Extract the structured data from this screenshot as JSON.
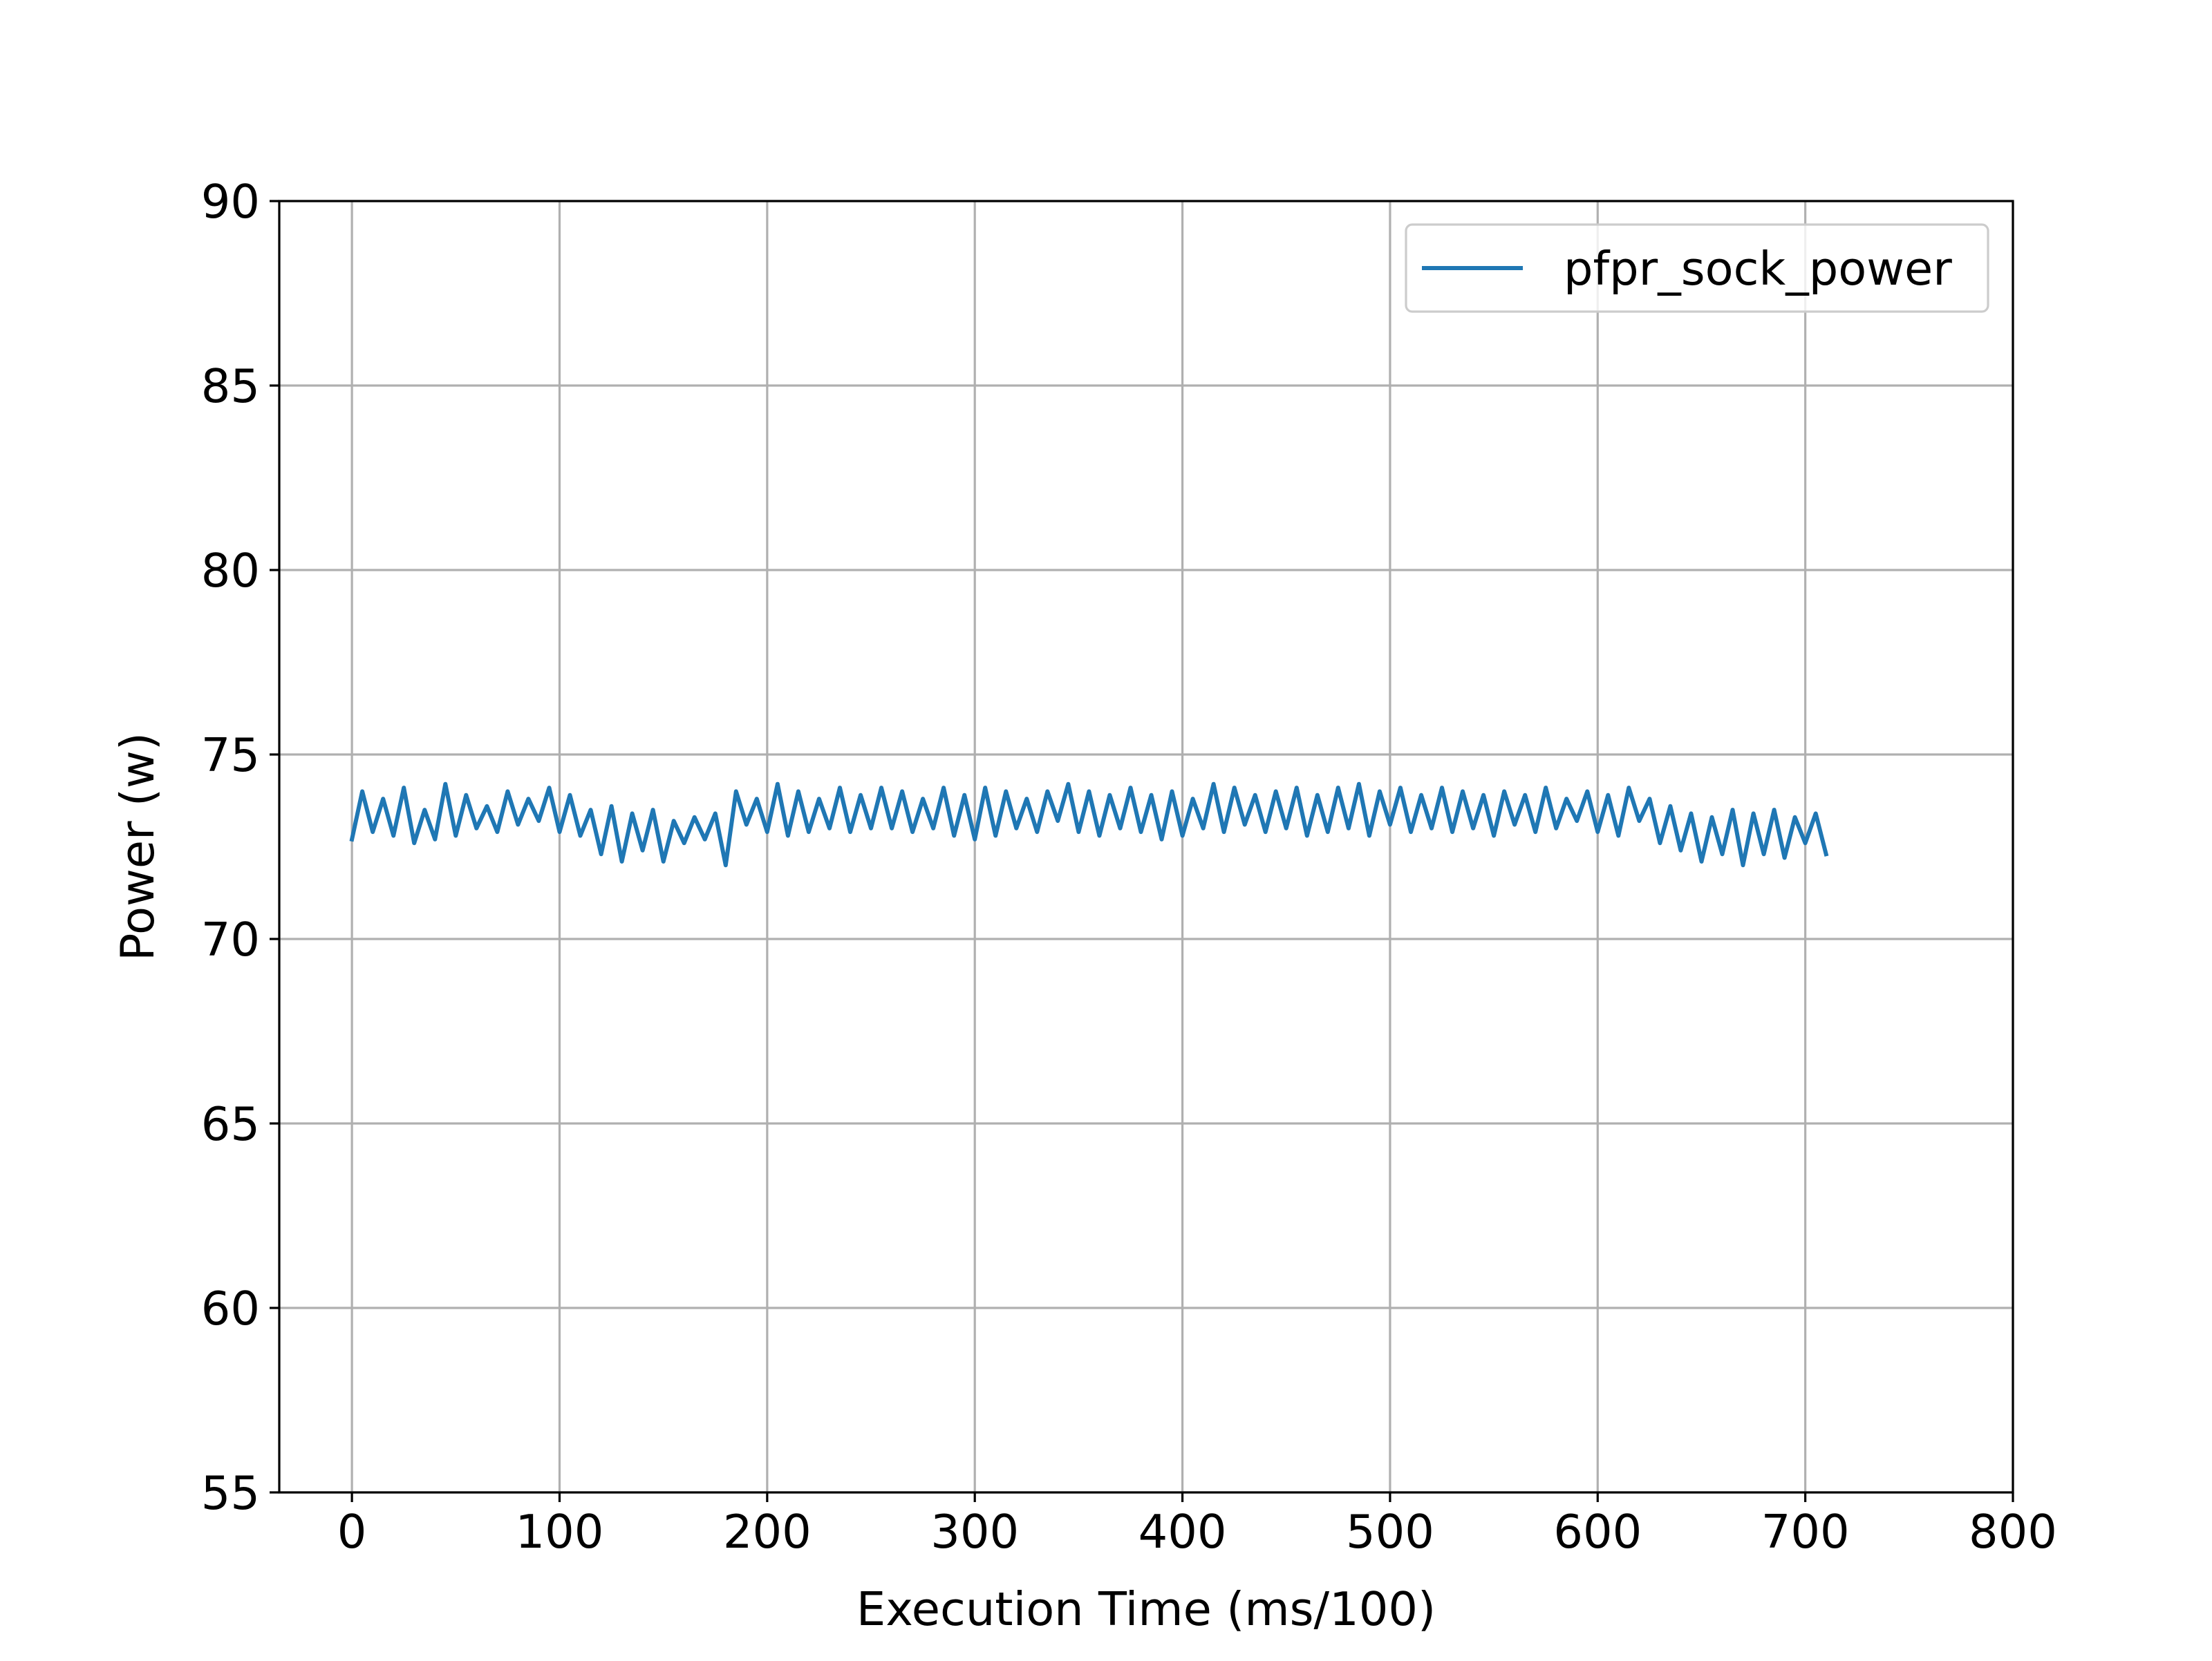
{
  "chart_data": {
    "type": "line",
    "title": "",
    "xlabel": "Execution Time (ms/100)",
    "ylabel": "Power (w)",
    "xlim": [
      -35,
      800
    ],
    "ylim": [
      55,
      90
    ],
    "xticks": [
      0,
      100,
      200,
      300,
      400,
      500,
      600,
      700,
      800
    ],
    "xtick_labels": [
      "0",
      "100",
      "200",
      "300",
      "400",
      "500",
      "600",
      "700",
      "800"
    ],
    "yticks": [
      55,
      60,
      65,
      70,
      75,
      80,
      85,
      90
    ],
    "ytick_labels": [
      "55",
      "60",
      "65",
      "70",
      "75",
      "80",
      "85",
      "90"
    ],
    "grid": true,
    "legend_position": "top-right",
    "series": [
      {
        "name": "pfpr_sock_power",
        "color": "#1f77b4",
        "x": [
          0,
          5,
          10,
          15,
          20,
          25,
          30,
          35,
          40,
          45,
          50,
          55,
          60,
          65,
          70,
          75,
          80,
          85,
          90,
          95,
          100,
          105,
          110,
          115,
          120,
          125,
          130,
          135,
          140,
          145,
          150,
          155,
          160,
          165,
          170,
          175,
          180,
          185,
          190,
          195,
          200,
          205,
          210,
          215,
          220,
          225,
          230,
          235,
          240,
          245,
          250,
          255,
          260,
          265,
          270,
          275,
          280,
          285,
          290,
          295,
          300,
          305,
          310,
          315,
          320,
          325,
          330,
          335,
          340,
          345,
          350,
          355,
          360,
          365,
          370,
          375,
          380,
          385,
          390,
          395,
          400,
          405,
          410,
          415,
          420,
          425,
          430,
          435,
          440,
          445,
          450,
          455,
          460,
          465,
          470,
          475,
          480,
          485,
          490,
          495,
          500,
          505,
          510,
          515,
          520,
          525,
          530,
          535,
          540,
          545,
          550,
          555,
          560,
          565,
          570,
          575,
          580,
          585,
          590,
          595,
          600,
          605,
          610,
          615,
          620,
          625,
          630,
          635,
          640,
          645,
          650,
          655,
          660,
          665,
          670,
          675,
          680,
          685,
          690,
          695,
          700,
          705,
          710
        ],
        "values": [
          72.7,
          74.0,
          72.9,
          73.8,
          72.8,
          74.1,
          72.6,
          73.5,
          72.7,
          74.2,
          72.8,
          73.9,
          73.0,
          73.6,
          72.9,
          74.0,
          73.1,
          73.8,
          73.2,
          74.1,
          72.9,
          73.9,
          72.8,
          73.5,
          72.3,
          73.6,
          72.1,
          73.4,
          72.4,
          73.5,
          72.1,
          73.2,
          72.6,
          73.3,
          72.7,
          73.4,
          72.0,
          74.0,
          73.1,
          73.8,
          72.9,
          74.2,
          72.8,
          74.0,
          72.9,
          73.8,
          73.0,
          74.1,
          72.9,
          73.9,
          73.0,
          74.1,
          73.0,
          74.0,
          72.9,
          73.8,
          73.0,
          74.1,
          72.8,
          73.9,
          72.7,
          74.1,
          72.8,
          74.0,
          73.0,
          73.8,
          72.9,
          74.0,
          73.2,
          74.2,
          72.9,
          74.0,
          72.8,
          73.9,
          73.0,
          74.1,
          72.9,
          73.9,
          72.7,
          74.0,
          72.8,
          73.8,
          73.0,
          74.2,
          72.9,
          74.1,
          73.1,
          73.9,
          72.9,
          74.0,
          73.0,
          74.1,
          72.8,
          73.9,
          72.9,
          74.1,
          73.0,
          74.2,
          72.8,
          74.0,
          73.1,
          74.1,
          72.9,
          73.9,
          73.0,
          74.1,
          72.9,
          74.0,
          73.0,
          73.9,
          72.8,
          74.0,
          73.1,
          73.9,
          72.9,
          74.1,
          73.0,
          73.8,
          73.2,
          74.0,
          72.9,
          73.9,
          72.8,
          74.1,
          73.2,
          73.8,
          72.6,
          73.6,
          72.4,
          73.4,
          72.1,
          73.3,
          72.3,
          73.5,
          72.0,
          73.4,
          72.3,
          73.5,
          72.2,
          73.3,
          72.6,
          73.4,
          72.3
        ]
      }
    ]
  }
}
